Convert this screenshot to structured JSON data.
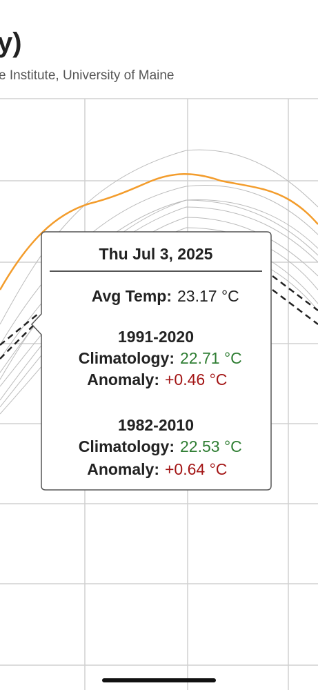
{
  "header": {
    "title": "y)",
    "subtitle": "e Institute, University of Maine"
  },
  "tooltip": {
    "date": "Thu Jul 3, 2025",
    "avg": {
      "label": "Avg Temp:",
      "value": "23.17 °C"
    },
    "periods": [
      {
        "name": "1991-2020",
        "climatology_label": "Climatology:",
        "climatology": "22.71 °C",
        "anomaly_label": "Anomaly:",
        "anomaly": "+0.46 °C"
      },
      {
        "name": "1982-2010",
        "climatology_label": "Climatology:",
        "climatology": "22.53 °C",
        "anomaly_label": "Anomaly:",
        "anomaly": "+0.64 °C"
      }
    ]
  }
}
